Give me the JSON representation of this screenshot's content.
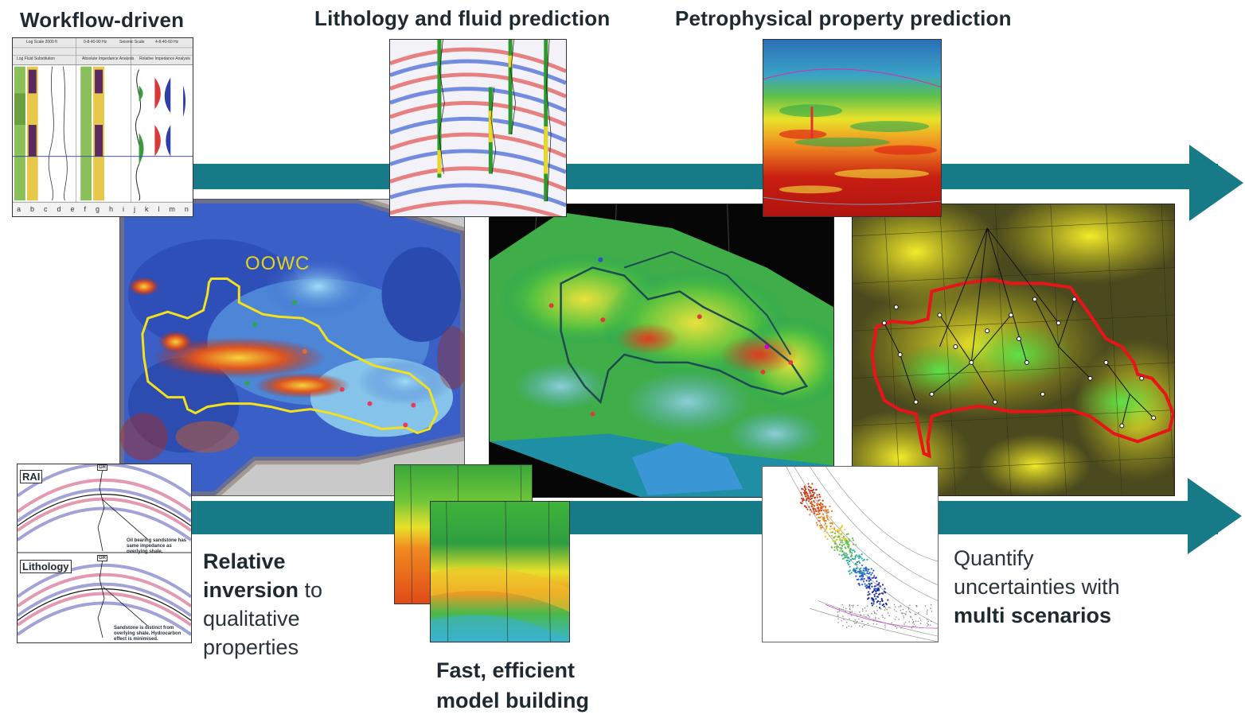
{
  "headings": {
    "workflow": "Workflow-driven",
    "lithology": "Lithology and fluid prediction",
    "petro": "Petrophysical property prediction"
  },
  "captions": {
    "relative_bold_1": "Relative",
    "relative_bold_2": "inversion",
    "relative_rest_1": " to",
    "relative_rest_2": "qualitative",
    "relative_rest_3": "properties",
    "fast_1": "Fast, efficient",
    "fast_2": "model building",
    "quantify_1": "Quantify",
    "quantify_2": "uncertainties with",
    "quantify_bold": "multi scenarios"
  },
  "map_labels": {
    "oowc": "OOWC"
  },
  "inset_labels": {
    "rai": "RAI",
    "lithology": "Lithology",
    "gr1": "GR",
    "gr2": "GR",
    "note1": "Oil bearing sandstone has same impedance as overlying shale.",
    "note2": "Sandstone is distinct from overlying shale. Hydrocarbon effect is minimised."
  },
  "log_panel": {
    "header_1": "Log Scale 2000 ft",
    "header_2": "0-8-40-90 Hz",
    "header_3": "Seismic Scale",
    "header_4": "4-8-40-60 Hz",
    "sub_1": "Log Fluid Substitution",
    "sub_2": "Absolute Impedance Analysis",
    "sub_3": "Relative Impedance Analysis",
    "columns": [
      "a",
      "b",
      "c",
      "d",
      "e",
      "f",
      "g",
      "h",
      "i",
      "j",
      "k",
      "l",
      "m",
      "n"
    ]
  },
  "colors": {
    "arrow": "#177a87",
    "heading_text": "#1f2a30",
    "oowc_outline": "#f2e11c",
    "red_outline": "#e8141a"
  }
}
